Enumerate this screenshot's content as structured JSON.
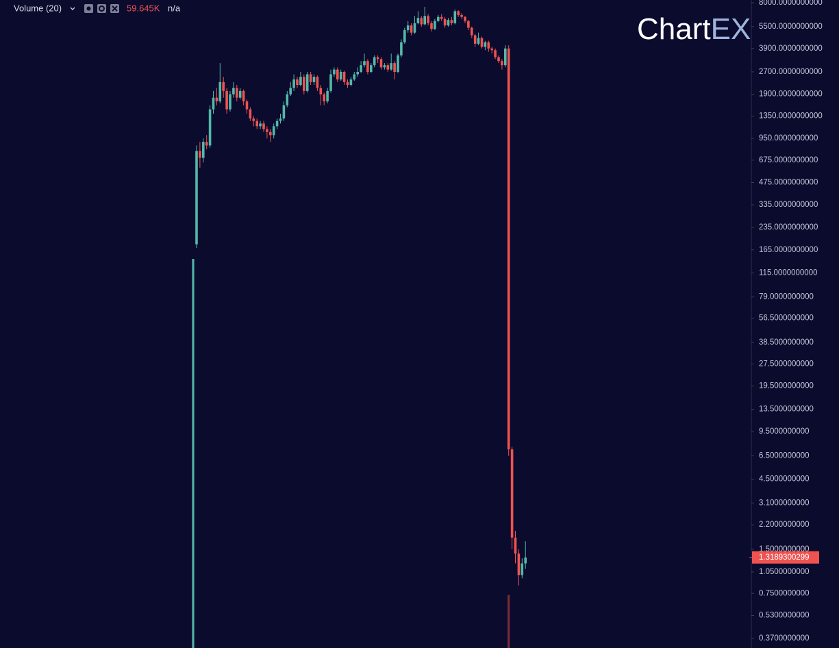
{
  "chart_data": {
    "type": "candlestick",
    "indicator_name": "Volume (20)",
    "indicator_value": "59.645K",
    "indicator_extra": "n/a",
    "logo": {
      "text": "Chart",
      "accent": "EX"
    },
    "log_scale": true,
    "up_color": "#53b9a8",
    "down_color": "#ef5350",
    "volume_up_color": "#4fb3a4",
    "volume_down_color": "#7a2a3a",
    "ylim": [
      0.318,
      8350
    ],
    "yticks": [
      {
        "value": 8000,
        "label": "8000.0000000000"
      },
      {
        "value": 5500,
        "label": "5500.0000000000"
      },
      {
        "value": 3900,
        "label": "3900.0000000000"
      },
      {
        "value": 2700,
        "label": "2700.0000000000"
      },
      {
        "value": 1900,
        "label": "1900.0000000000"
      },
      {
        "value": 1350,
        "label": "1350.0000000000"
      },
      {
        "value": 950,
        "label": "950.0000000000"
      },
      {
        "value": 675,
        "label": "675.0000000000"
      },
      {
        "value": 475,
        "label": "475.0000000000"
      },
      {
        "value": 335,
        "label": "335.0000000000"
      },
      {
        "value": 235,
        "label": "235.0000000000"
      },
      {
        "value": 165,
        "label": "165.0000000000"
      },
      {
        "value": 115,
        "label": "115.0000000000"
      },
      {
        "value": 79,
        "label": "79.0000000000"
      },
      {
        "value": 56.5,
        "label": "56.5000000000"
      },
      {
        "value": 38.5,
        "label": "38.5000000000"
      },
      {
        "value": 27.5,
        "label": "27.5000000000"
      },
      {
        "value": 19.5,
        "label": "19.5000000000"
      },
      {
        "value": 13.5,
        "label": "13.5000000000"
      },
      {
        "value": 9.5,
        "label": "9.5000000000"
      },
      {
        "value": 6.5,
        "label": "6.5000000000"
      },
      {
        "value": 4.5,
        "label": "4.5000000000"
      },
      {
        "value": 3.1,
        "label": "3.1000000000"
      },
      {
        "value": 2.2,
        "label": "2.2000000000"
      },
      {
        "value": 1.5,
        "label": "1.5000000000"
      },
      {
        "value": 1.05,
        "label": "1.0500000000"
      },
      {
        "value": 0.75,
        "label": "0.7500000000"
      },
      {
        "value": 0.53,
        "label": "0.5300000000"
      },
      {
        "value": 0.37,
        "label": "0.3700000000"
      }
    ],
    "open": [
      180,
      780,
      700,
      900,
      850,
      1500,
      1800,
      1700,
      2300,
      2000,
      1500,
      1900,
      2100,
      1800,
      2000,
      1700,
      1500,
      1300,
      1250,
      1150,
      1200,
      1100,
      1050,
      1000,
      1150,
      1250,
      1300,
      1600,
      1900,
      2100,
      2400,
      2200,
      2500,
      2000,
      2600,
      2300,
      2500,
      2100,
      1900,
      1700,
      2000,
      2600,
      2800,
      2400,
      2700,
      2300,
      2200,
      2400,
      2600,
      2700,
      3000,
      3200,
      2700,
      3000,
      3400,
      3300,
      2900,
      3000,
      2800,
      3100,
      2700,
      3500,
      4300,
      5200,
      5600,
      5000,
      5800,
      6300,
      5700,
      6500,
      5800,
      5300,
      6000,
      6400,
      6200,
      5600,
      6100,
      5800,
      7000,
      6600,
      6400,
      6000,
      5400,
      4800,
      4200,
      4600,
      4000,
      4300,
      3900,
      3800,
      3400,
      3200,
      3000,
      3900,
      7.2,
      1.8,
      1.4,
      1.0,
      1.2
    ],
    "high": [
      850,
      900,
      950,
      1000,
      1600,
      2000,
      2100,
      3100,
      2500,
      2100,
      2000,
      2300,
      2200,
      2100,
      2050,
      1750,
      1550,
      1350,
      1300,
      1250,
      1250,
      1150,
      1100,
      1200,
      1300,
      1400,
      1700,
      2000,
      2300,
      2600,
      2500,
      2700,
      2600,
      2700,
      2700,
      2600,
      2550,
      2200,
      1950,
      2100,
      2800,
      2900,
      2900,
      2800,
      2750,
      2400,
      2500,
      2700,
      2900,
      3200,
      3600,
      3300,
      3100,
      3500,
      3500,
      3400,
      3100,
      3100,
      3600,
      3200,
      3600,
      4500,
      5400,
      6000,
      5800,
      6500,
      7000,
      6500,
      7500,
      6700,
      6000,
      6200,
      6600,
      6700,
      6400,
      6300,
      6400,
      7200,
      7100,
      6800,
      6500,
      6100,
      5500,
      4900,
      5000,
      4700,
      4400,
      4400,
      4000,
      3900,
      3500,
      3300,
      4100,
      4100,
      7.5,
      2,
      1.5,
      1.3,
      1.7
    ],
    "low": [
      170,
      600,
      650,
      800,
      820,
      1400,
      1600,
      1650,
      1800,
      1400,
      1450,
      1800,
      1700,
      1750,
      1600,
      1400,
      1250,
      1150,
      1100,
      1100,
      1050,
      950,
      900,
      950,
      1100,
      1200,
      1250,
      1550,
      1850,
      2000,
      2100,
      2150,
      1900,
      1950,
      2200,
      2200,
      2000,
      1600,
      1600,
      1650,
      1950,
      2500,
      2300,
      2350,
      2200,
      2100,
      2150,
      2350,
      2500,
      2650,
      2900,
      2600,
      2650,
      2900,
      3100,
      2800,
      2800,
      2700,
      2750,
      2400,
      2650,
      3400,
      4200,
      5000,
      4800,
      4900,
      5700,
      5500,
      5600,
      5600,
      5100,
      5200,
      5900,
      6000,
      5400,
      5500,
      5600,
      5700,
      6400,
      6200,
      5800,
      5200,
      4600,
      4000,
      4100,
      3900,
      3800,
      3700,
      3600,
      3300,
      3100,
      2800,
      2900,
      6.5,
      1.5,
      1.2,
      0.85,
      0.95,
      1.1
    ],
    "close": [
      780,
      700,
      900,
      850,
      1500,
      1800,
      1700,
      2300,
      2000,
      1500,
      1900,
      2100,
      1800,
      2000,
      1700,
      1500,
      1300,
      1250,
      1150,
      1200,
      1100,
      1050,
      1000,
      1150,
      1250,
      1300,
      1600,
      1900,
      2100,
      2400,
      2200,
      2500,
      2000,
      2600,
      2300,
      2500,
      2100,
      1900,
      1700,
      2000,
      2600,
      2800,
      2400,
      2700,
      2300,
      2200,
      2400,
      2600,
      2700,
      3000,
      3200,
      2700,
      3000,
      3400,
      3300,
      2900,
      3000,
      2800,
      3100,
      2700,
      3500,
      4300,
      5200,
      5600,
      5000,
      5800,
      6300,
      5700,
      6500,
      5800,
      5300,
      6000,
      6400,
      6200,
      5600,
      6100,
      5800,
      7000,
      6600,
      6400,
      6000,
      5400,
      4800,
      4200,
      4600,
      4000,
      4300,
      3900,
      3800,
      3400,
      3200,
      3000,
      3900,
      7.2,
      1.8,
      1.4,
      1.0,
      1.2,
      1.3189300299
    ],
    "volume": [
      330000,
      null,
      null,
      null,
      null,
      null,
      null,
      null,
      null,
      null,
      null,
      null,
      null,
      null,
      null,
      null,
      null,
      null,
      null,
      null,
      null,
      null,
      null,
      null,
      null,
      null,
      null,
      null,
      null,
      null,
      null,
      null,
      null,
      null,
      null,
      null,
      null,
      null,
      null,
      null,
      null,
      null,
      null,
      null,
      null,
      null,
      null,
      null,
      null,
      null,
      null,
      null,
      null,
      null,
      null,
      null,
      null,
      null,
      null,
      null,
      null,
      null,
      null,
      null,
      null,
      null,
      null,
      null,
      null,
      null,
      null,
      null,
      null,
      null,
      null,
      null,
      null,
      null,
      null,
      null,
      null,
      null,
      null,
      null,
      null,
      null,
      null,
      null,
      null,
      null,
      null,
      null,
      null,
      45000,
      null,
      null,
      null,
      null,
      null
    ]
  }
}
